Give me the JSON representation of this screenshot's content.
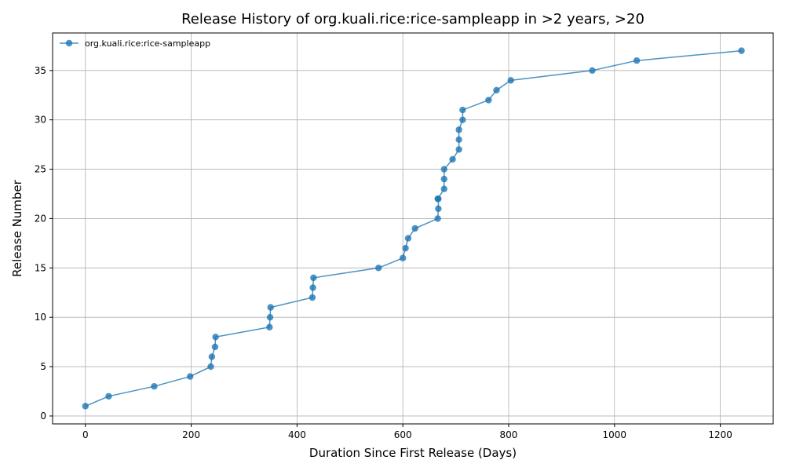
{
  "chart_data": {
    "type": "line",
    "title": "Release History of org.kuali.rice:rice-sampleapp in >2 years, >20",
    "xlabel": "Duration Since First Release (Days)",
    "ylabel": "Release Number",
    "xlim": [
      -62,
      1300
    ],
    "ylim": [
      -0.8,
      38.8
    ],
    "xticks": [
      0,
      200,
      400,
      600,
      800,
      1000,
      1200
    ],
    "yticks": [
      0,
      5,
      10,
      15,
      20,
      25,
      30,
      35
    ],
    "grid": true,
    "legend_position": "upper-left",
    "line_color": "#1f77b4",
    "series": [
      {
        "name": "org.kuali.rice:rice-sampleapp",
        "x": [
          0,
          44,
          130,
          198,
          237,
          239,
          245,
          246,
          348,
          349,
          350,
          429,
          430,
          431,
          554,
          600,
          605,
          610,
          623,
          666,
          667,
          667,
          666,
          678,
          678,
          678,
          694,
          706,
          706,
          706,
          713,
          713,
          762,
          777,
          804,
          958,
          1042,
          1240
        ],
        "y": [
          1,
          2,
          3,
          4,
          5,
          6,
          7,
          8,
          9,
          10,
          11,
          12,
          13,
          14,
          15,
          16,
          17,
          18,
          19,
          20,
          21,
          22,
          22,
          23,
          24,
          25,
          26,
          27,
          28,
          29,
          30,
          31,
          32,
          33,
          34,
          35,
          36,
          37
        ]
      }
    ]
  }
}
